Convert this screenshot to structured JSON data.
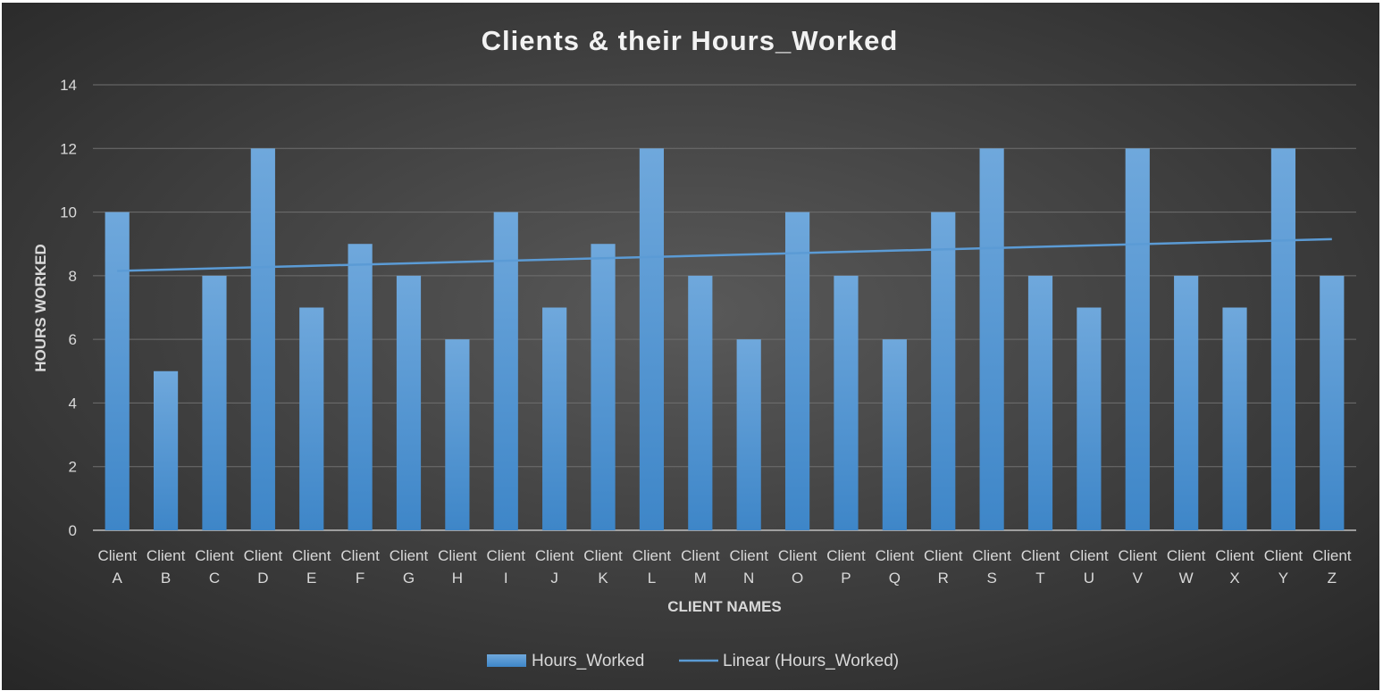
{
  "chart_data": {
    "type": "bar",
    "title": "Clients & their Hours_Worked",
    "xlabel": "CLIENT NAMES",
    "ylabel": "HOURS WORKED",
    "ylim": [
      0,
      14
    ],
    "yticks": [
      0,
      2,
      4,
      6,
      8,
      10,
      12,
      14
    ],
    "grid": true,
    "legend_position": "bottom",
    "categories": [
      "Client A",
      "Client B",
      "Client C",
      "Client D",
      "Client E",
      "Client F",
      "Client G",
      "Client H",
      "Client I",
      "Client J",
      "Client K",
      "Client L",
      "Client M",
      "Client N",
      "Client O",
      "Client P",
      "Client Q",
      "Client R",
      "Client S",
      "Client T",
      "Client U",
      "Client V",
      "Client W",
      "Client X",
      "Client Y",
      "Client Z"
    ],
    "series": [
      {
        "name": "Hours_Worked",
        "values": [
          10,
          5,
          8,
          12,
          7,
          9,
          8,
          6,
          10,
          7,
          9,
          12,
          8,
          6,
          10,
          8,
          6,
          10,
          12,
          8,
          7,
          12,
          8,
          7,
          12,
          8
        ],
        "color": "#5b9bd5"
      }
    ],
    "trendline": {
      "name": "Linear (Hours_Worked)",
      "type": "linear",
      "start": 8.15,
      "end": 9.15,
      "color": "#5b9bd5"
    },
    "colors": {
      "background_center": "#595959",
      "background_edge": "#262626",
      "text": "#d9d9d9",
      "gridline": "#6f6f6f"
    }
  }
}
